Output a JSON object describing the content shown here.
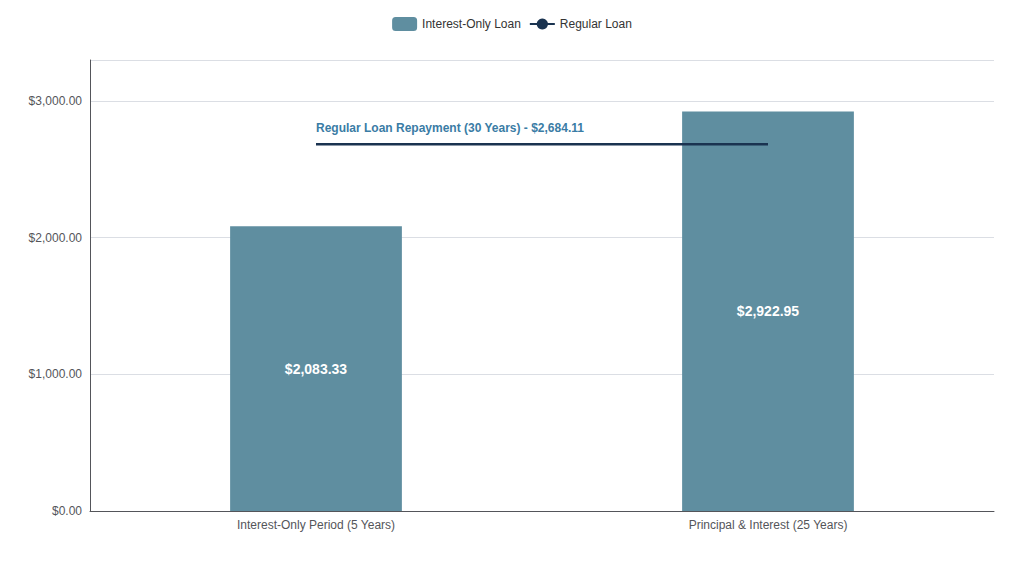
{
  "chart_data": {
    "type": "bar",
    "categories": [
      "Interest-Only Period (5 Years)",
      "Principal & Interest (25 Years)"
    ],
    "series": [
      {
        "name": "Interest-Only Loan",
        "type": "bar",
        "color": "#5f8ea0",
        "values": [
          2083.33,
          2922.95
        ],
        "value_labels": [
          "$2,083.33",
          "$2,922.95"
        ],
        "data_labels": true
      },
      {
        "name": "Regular Loan",
        "type": "line",
        "color": "#1a3350",
        "values": [
          2684.11,
          2684.11
        ]
      }
    ],
    "annotations": [
      "Regular Loan Repayment (30 Years) - $2,684.11"
    ],
    "ylim": [
      0,
      3300
    ],
    "yticks": [
      {
        "value": 0,
        "label": "$0.00"
      },
      {
        "value": 1000,
        "label": "$1,000.00"
      },
      {
        "value": 2000,
        "label": "$2,000.00"
      },
      {
        "value": 3000,
        "label": "$3,000.00"
      }
    ],
    "grid": true,
    "legend": "top"
  }
}
